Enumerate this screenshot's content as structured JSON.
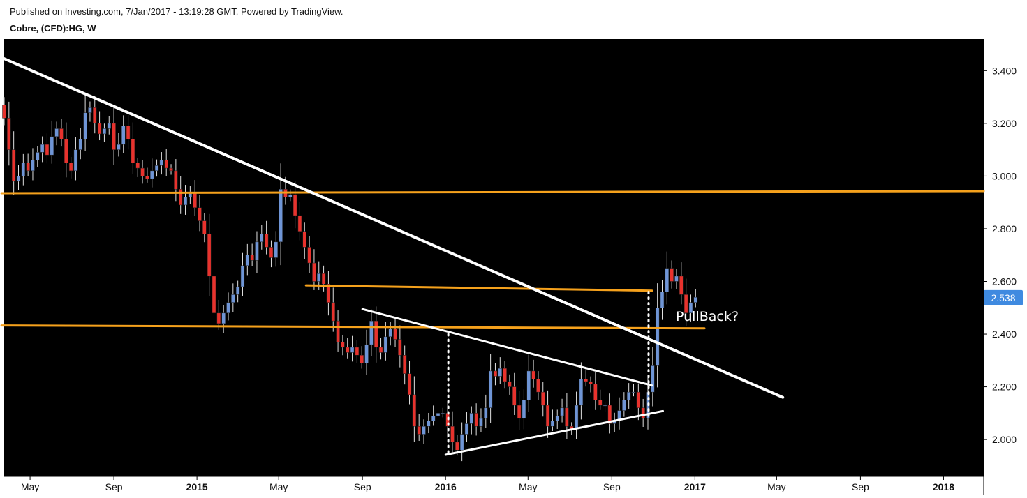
{
  "header": {
    "published": "Published on Investing.com, 7/Jan/2017 - 13:19:28 GMT, Powered by TradingView.",
    "symbol": "Cobre, (CFD):HG, W"
  },
  "colors": {
    "background": "#000000",
    "up_candle": "#6f95d6",
    "down_candle": "#e8322d",
    "wick": "#e0e0e0",
    "orange_line": "#f5a11c",
    "white_line": "#ffffff",
    "price_badge": "#3f8ae0"
  },
  "chart_data": {
    "type": "candlestick",
    "title": "Cobre, (CFD):HG, W",
    "timeframe": "weekly",
    "y_range": [
      1.86,
      3.52
    ],
    "y_ticks": [
      "2.000",
      "2.200",
      "2.400",
      "2.600",
      "2.800",
      "3.000",
      "3.200",
      "3.400"
    ],
    "x_range": [
      "2014-03-24",
      "2018-03-01"
    ],
    "x_ticks": [
      {
        "label": "May",
        "date": "2014-05-01",
        "year": false
      },
      {
        "label": "Sep",
        "date": "2014-09-01",
        "year": false
      },
      {
        "label": "2015",
        "date": "2015-01-01",
        "year": true
      },
      {
        "label": "May",
        "date": "2015-05-01",
        "year": false
      },
      {
        "label": "Sep",
        "date": "2015-09-01",
        "year": false
      },
      {
        "label": "2016",
        "date": "2016-01-01",
        "year": true
      },
      {
        "label": "May",
        "date": "2016-05-01",
        "year": false
      },
      {
        "label": "Sep",
        "date": "2016-09-01",
        "year": false
      },
      {
        "label": "2017",
        "date": "2017-01-01",
        "year": true
      },
      {
        "label": "May",
        "date": "2017-05-01",
        "year": false
      },
      {
        "label": "Sep",
        "date": "2017-09-01",
        "year": false
      },
      {
        "label": "2018",
        "date": "2018-01-01",
        "year": true
      }
    ],
    "last_price": "2.538",
    "annotation": "PullBack?",
    "annotation_anchor": {
      "date": "2016-12-04",
      "price": 2.45
    },
    "start_date": "2014-03-24",
    "closes": [
      3.22,
      3.1,
      2.98,
      3.0,
      3.05,
      3.02,
      3.06,
      3.09,
      3.12,
      3.08,
      3.15,
      3.18,
      3.14,
      3.05,
      3.02,
      3.1,
      3.14,
      3.24,
      3.26,
      3.2,
      3.16,
      3.18,
      3.2,
      3.1,
      3.12,
      3.19,
      3.14,
      3.05,
      3.03,
      3.0,
      2.99,
      3.02,
      3.04,
      3.06,
      3.03,
      3.02,
      2.95,
      2.89,
      2.92,
      2.94,
      2.88,
      2.83,
      2.78,
      2.62,
      2.48,
      2.44,
      2.48,
      2.52,
      2.55,
      2.58,
      2.66,
      2.7,
      2.68,
      2.75,
      2.78,
      2.73,
      2.69,
      2.75,
      2.95,
      2.92,
      2.93,
      2.85,
      2.79,
      2.73,
      2.67,
      2.6,
      2.63,
      2.59,
      2.52,
      2.45,
      2.37,
      2.35,
      2.33,
      2.35,
      2.32,
      2.29,
      2.36,
      2.45,
      2.35,
      2.33,
      2.39,
      2.42,
      2.38,
      2.32,
      2.25,
      2.17,
      2.05,
      2.02,
      2.05,
      2.07,
      2.09,
      2.1,
      2.1,
      2.05,
      1.99,
      1.96,
      2.02,
      2.06,
      2.1,
      2.05,
      2.08,
      2.12,
      2.26,
      2.24,
      2.27,
      2.22,
      2.2,
      2.13,
      2.08,
      2.15,
      2.26,
      2.23,
      2.18,
      2.13,
      2.05,
      2.07,
      2.09,
      2.12,
      2.05,
      2.04,
      2.13,
      2.23,
      2.22,
      2.21,
      2.15,
      2.13,
      2.13,
      2.06,
      2.07,
      2.11,
      2.15,
      2.18,
      2.18,
      2.12,
      2.08,
      2.18,
      2.28,
      2.5,
      2.56,
      2.65,
      2.6,
      2.62,
      2.55,
      2.48,
      2.52,
      2.54
    ]
  }
}
